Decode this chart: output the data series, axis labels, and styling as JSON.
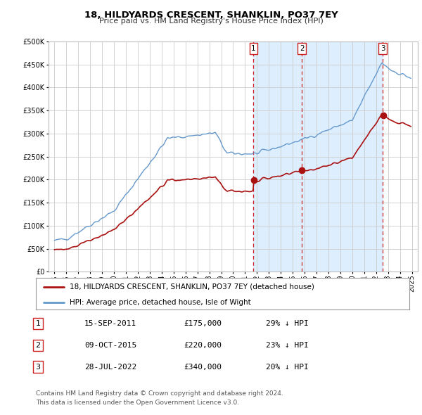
{
  "title": "18, HILDYARDS CRESCENT, SHANKLIN, PO37 7EY",
  "subtitle": "Price paid vs. HM Land Registry's House Price Index (HPI)",
  "legend_line1": "18, HILDYARDS CRESCENT, SHANKLIN, PO37 7EY (detached house)",
  "legend_line2": "HPI: Average price, detached house, Isle of Wight",
  "footer1": "Contains HM Land Registry data © Crown copyright and database right 2024.",
  "footer2": "This data is licensed under the Open Government Licence v3.0.",
  "transactions": [
    {
      "label": "1",
      "date": "15-SEP-2011",
      "price": "£175,000",
      "pct": "29% ↓ HPI",
      "x_year": 2011.71,
      "y_val": 175000
    },
    {
      "label": "2",
      "date": "09-OCT-2015",
      "price": "£220,000",
      "pct": "23% ↓ HPI",
      "x_year": 2015.77,
      "y_val": 220000
    },
    {
      "label": "3",
      "date": "28-JUL-2022",
      "price": "£340,000",
      "pct": "20% ↓ HPI",
      "x_year": 2022.57,
      "y_val": 340000
    }
  ],
  "hpi_color": "#6699cc",
  "price_color": "#aa1111",
  "vline_color": "#cc2222",
  "shade_color": "#ddeeff",
  "background_color": "#ffffff",
  "grid_color": "#cccccc",
  "ylim": [
    0,
    500000
  ],
  "xlim_start": 1994.5,
  "xlim_end": 2025.5
}
